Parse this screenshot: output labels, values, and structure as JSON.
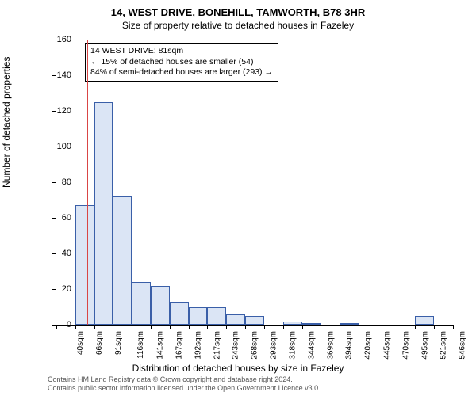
{
  "title_main": "14, WEST DRIVE, BONEHILL, TAMWORTH, B78 3HR",
  "title_sub": "Size of property relative to detached houses in Fazeley",
  "y_axis_title": "Number of detached properties",
  "x_axis_title": "Distribution of detached houses by size in Fazeley",
  "footer_line1": "Contains HM Land Registry data © Crown copyright and database right 2024.",
  "footer_line2": "Contains public sector information licensed under the Open Government Licence v3.0.",
  "chart": {
    "type": "histogram",
    "ylim": [
      0,
      160
    ],
    "ytick_step": 20,
    "x_labels": [
      "40sqm",
      "66sqm",
      "91sqm",
      "116sqm",
      "141sqm",
      "167sqm",
      "192sqm",
      "217sqm",
      "243sqm",
      "268sqm",
      "293sqm",
      "318sqm",
      "344sqm",
      "369sqm",
      "394sqm",
      "420sqm",
      "445sqm",
      "470sqm",
      "495sqm",
      "521sqm",
      "546sqm"
    ],
    "bar_values": [
      0,
      67,
      125,
      72,
      24,
      22,
      13,
      10,
      10,
      6,
      5,
      0,
      2,
      1,
      0,
      1,
      0,
      0,
      0,
      5,
      0
    ],
    "bar_fill": "#dbe5f5",
    "bar_border": "#3a5fa8",
    "background": "#ffffff",
    "marker_value_sqm": 81,
    "marker_color": "#d94545",
    "info_box": {
      "line1": "14 WEST DRIVE: 81sqm",
      "line2": "← 15% of detached houses are smaller (54)",
      "line3": "84% of semi-detached houses are larger (293) →"
    }
  }
}
